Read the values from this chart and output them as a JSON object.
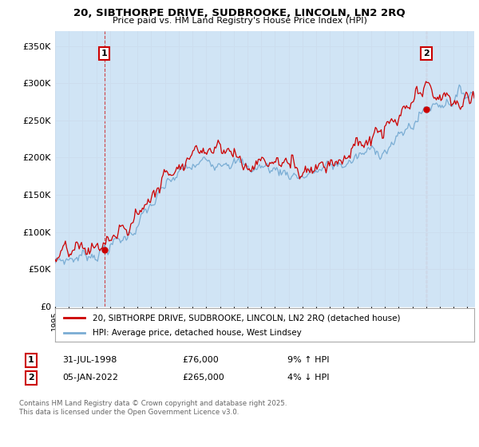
{
  "title_line1": "20, SIBTHORPE DRIVE, SUDBROOKE, LINCOLN, LN2 2RQ",
  "title_line2": "Price paid vs. HM Land Registry's House Price Index (HPI)",
  "yticks": [
    0,
    50000,
    100000,
    150000,
    200000,
    250000,
    300000,
    350000
  ],
  "ylim": [
    0,
    370000
  ],
  "sale1_date": "31-JUL-1998",
  "sale1_price": 76000,
  "sale1_hpi": "9% ↑ HPI",
  "sale2_date": "05-JAN-2022",
  "sale2_price": 265000,
  "sale2_hpi": "4% ↓ HPI",
  "legend_label_red": "20, SIBTHORPE DRIVE, SUDBROOKE, LINCOLN, LN2 2RQ (detached house)",
  "legend_label_blue": "HPI: Average price, detached house, West Lindsey",
  "footnote": "Contains HM Land Registry data © Crown copyright and database right 2025.\nThis data is licensed under the Open Government Licence v3.0.",
  "line_color_red": "#cc0000",
  "line_color_blue": "#7aadd4",
  "fill_color_blue": "#d0e4f5",
  "grid_color": "#ccddee",
  "annotation1_label": "1",
  "annotation2_label": "2",
  "sale1_x_year": 1998.58,
  "sale2_x_year": 2022.02,
  "xlim_start": 1995.0,
  "xlim_end": 2025.5
}
